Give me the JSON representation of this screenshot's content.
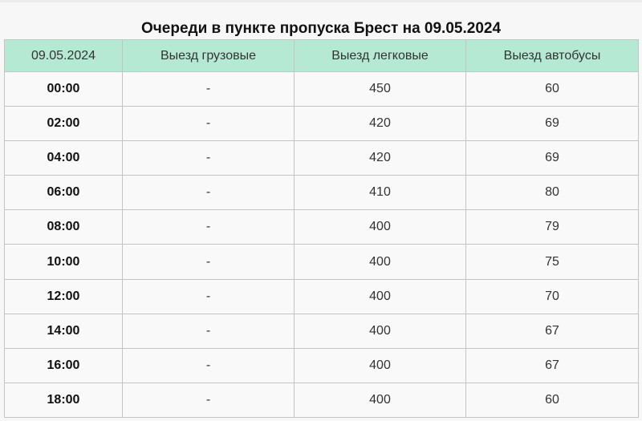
{
  "title": "Очереди в пункте пропуска Брест на 09.05.2024",
  "columns": [
    "09.05.2024",
    "Выезд грузовые",
    "Выезд легковые",
    "Выезд автобусы"
  ],
  "rows": [
    [
      "00:00",
      "-",
      "450",
      "60"
    ],
    [
      "02:00",
      "-",
      "420",
      "69"
    ],
    [
      "04:00",
      "-",
      "420",
      "69"
    ],
    [
      "06:00",
      "-",
      "410",
      "80"
    ],
    [
      "08:00",
      "-",
      "400",
      "79"
    ],
    [
      "10:00",
      "-",
      "400",
      "75"
    ],
    [
      "12:00",
      "-",
      "400",
      "70"
    ],
    [
      "14:00",
      "-",
      "400",
      "67"
    ],
    [
      "16:00",
      "-",
      "400",
      "67"
    ],
    [
      "18:00",
      "-",
      "400",
      "60"
    ]
  ],
  "colors": {
    "header_bg": "#b6e9d4"
  }
}
